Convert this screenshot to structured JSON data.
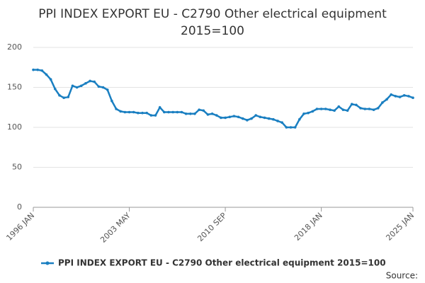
{
  "chart_data": {
    "type": "line",
    "title": "PPI INDEX EXPORT EU - C2790 Other electrical equipment",
    "subtitle": "2015=100",
    "source": "Source:",
    "categories": [
      "1996 JAN",
      null,
      null,
      null,
      null,
      null,
      null,
      null,
      null,
      null,
      null,
      null,
      null,
      null,
      null,
      null,
      null,
      null,
      null,
      null,
      null,
      null,
      "2003 MAY",
      null,
      null,
      null,
      null,
      null,
      null,
      null,
      null,
      null,
      null,
      null,
      null,
      null,
      null,
      null,
      null,
      null,
      null,
      null,
      null,
      null,
      "2010 SEP",
      null,
      null,
      null,
      null,
      null,
      null,
      null,
      null,
      null,
      null,
      null,
      null,
      null,
      null,
      null,
      null,
      null,
      null,
      null,
      null,
      null,
      "2018 JAN",
      null,
      null,
      null,
      null,
      null,
      null,
      null,
      null,
      null,
      null,
      null,
      null,
      null,
      null,
      null,
      null,
      null,
      null,
      null,
      null,
      "2025 JAN"
    ],
    "series": [
      {
        "name": "PPI INDEX EXPORT EU - C2790 Other electrical equipment 2015=100",
        "color": "#1a7fc1",
        "values": [
          172,
          172,
          171,
          166,
          160,
          148,
          140,
          137,
          138,
          152,
          150,
          152,
          155,
          158,
          157,
          151,
          150,
          147,
          133,
          123,
          120,
          119,
          119,
          119,
          118,
          118,
          118,
          115,
          115,
          125,
          119,
          119,
          119,
          119,
          119,
          117,
          117,
          117,
          122,
          121,
          116,
          117,
          115,
          112,
          112,
          113,
          114,
          113,
          111,
          109,
          111,
          115,
          113,
          112,
          111,
          110,
          108,
          106,
          100,
          100,
          100,
          110,
          117,
          118,
          120,
          123,
          123,
          123,
          122,
          121,
          126,
          122,
          121,
          129,
          128,
          124,
          123,
          123,
          122,
          124,
          131,
          135,
          141,
          139,
          138,
          140,
          139,
          137
        ]
      }
    ],
    "ylim": [
      0,
      200
    ],
    "yticks": [
      0,
      50,
      100,
      150,
      200
    ],
    "grid": true
  }
}
